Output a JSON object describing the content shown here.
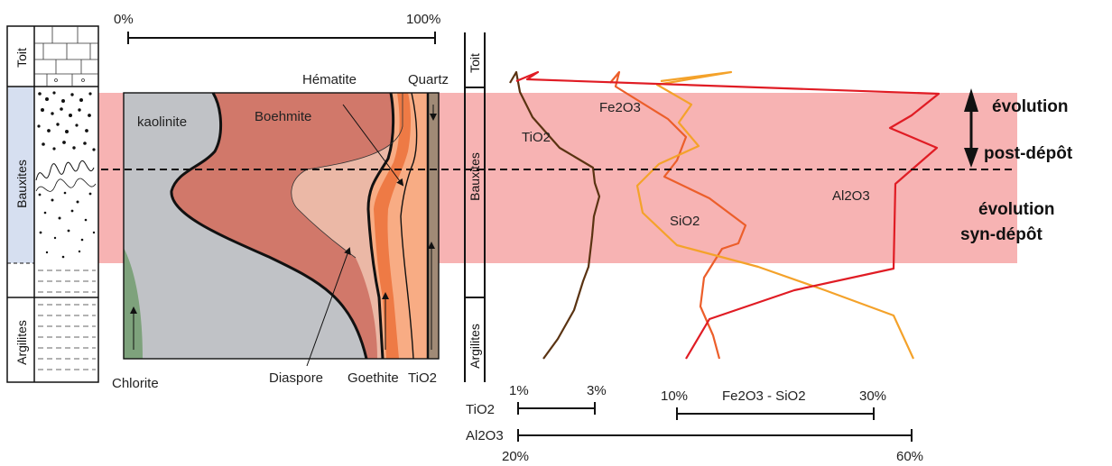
{
  "column": {
    "units": [
      "Toit",
      "Bauxites",
      "Argilites"
    ]
  },
  "mineral_panel": {
    "scale_start": "0%",
    "scale_end": "100%",
    "minerals": {
      "kaolinite": "kaolinite",
      "boehmite": "Boehmite",
      "hematite": "Hématite",
      "quartz": "Quartz",
      "chlorite": "Chlorite",
      "diaspore": "Diaspore",
      "goethite": "Goethite",
      "tio2": "TiO2"
    }
  },
  "chem_panel": {
    "labels": {
      "tio2": "TiO2",
      "fe2o3": "Fe2O3",
      "sio2": "SiO2",
      "al2o3": "Al2O3"
    },
    "scales": {
      "tio2": {
        "name": "TiO2",
        "min": "1%",
        "max": "3%"
      },
      "fe_si": {
        "name": "Fe2O3 - SiO2",
        "min": "10%",
        "max": "30%"
      },
      "al2o3": {
        "name": "Al2O3",
        "min": "20%",
        "max": "60%"
      }
    }
  },
  "annotations": {
    "post_line1": "évolution",
    "post_line2": "post-dépôt",
    "syn_line1": "évolution",
    "syn_line2": "syn-dépôt"
  },
  "colors": {
    "band": "#f7b3b3",
    "kaolinite": "#c0c2c6",
    "boehmite": "#d1786a",
    "diaspore": "#ebb8a6",
    "goethite": "#f8ac84",
    "hematite": "#ee7a45",
    "tio2_band": "#a08a76",
    "chlorite": "#7ea27c",
    "tio2_curve": "#5a3312",
    "fe2o3_curve": "#ec5e2a",
    "sio2_curve": "#f4a22a",
    "al2o3_curve": "#e01c24",
    "bauxite_column": "#d6dff0"
  }
}
